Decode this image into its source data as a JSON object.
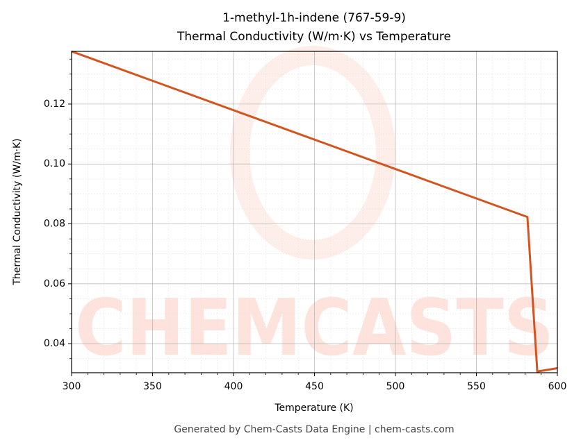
{
  "chart_data": {
    "type": "line",
    "title": "1-methyl-1h-indene (767-59-9)",
    "subtitle": "Thermal Conductivity (W/m·K) vs Temperature",
    "x_label": "Temperature (K)",
    "y_label": "Thermal Conductivity (W/m·K)",
    "footer": "Generated by Chem-Casts Data Engine | chem-casts.com",
    "watermark": "CHEMCASTS",
    "x": [
      300,
      581.5,
      587.6,
      600
    ],
    "series": [
      {
        "name": "Thermal Conductivity",
        "color": "#d4541f",
        "values": [
          0.1376,
          0.0823,
          0.0307,
          0.0318
        ]
      }
    ],
    "xlim": [
      300,
      600
    ],
    "xticks": [
      300,
      350,
      400,
      450,
      500,
      550,
      600
    ],
    "ylim": [
      0.0303,
      0.1376
    ],
    "yticks": [
      0.04,
      0.06,
      0.08,
      {
        "value": 0.1,
        "label": "0.10"
      },
      0.12
    ],
    "grid": true,
    "minor_grid": true
  }
}
